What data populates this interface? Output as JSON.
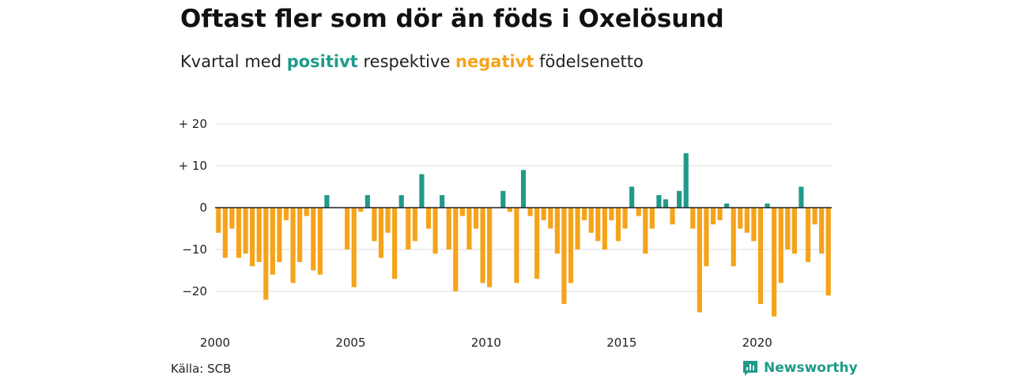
{
  "title": "Oftast fler som dör än föds i Oxelösund",
  "subtitle": {
    "prefix": "Kvartal med ",
    "positive": "positivt",
    "middle": " respektive ",
    "negative": "negativt",
    "suffix": " födelsenetto"
  },
  "source": "Källa: SCB",
  "brand": "Newsworthy",
  "colors": {
    "positive": "#1f9a8a",
    "negative": "#f5a31a",
    "grid": "#dddddd",
    "zero": "#222222"
  },
  "chart_data": {
    "type": "bar",
    "x_start": "2000 Q1",
    "x_ticks": [
      {
        "label": "2000",
        "index": 0
      },
      {
        "label": "2005",
        "index": 20
      },
      {
        "label": "2010",
        "index": 40
      },
      {
        "label": "2015",
        "index": 60
      },
      {
        "label": "2020",
        "index": 80
      }
    ],
    "y_ticks": [
      {
        "label": "+ 20",
        "value": 20
      },
      {
        "label": "+ 10",
        "value": 10
      },
      {
        "label": "0",
        "value": 0
      },
      {
        "label": "−10",
        "value": -10
      },
      {
        "label": "−20",
        "value": -20
      }
    ],
    "ylim": [
      -27,
      20
    ],
    "values": [
      -6,
      -12,
      -5,
      -12,
      -11,
      -14,
      -13,
      -22,
      -16,
      -13,
      -3,
      -18,
      -13,
      -2,
      -15,
      -16,
      3,
      0,
      0,
      -10,
      -19,
      -1,
      3,
      -8,
      -12,
      -6,
      -17,
      3,
      -10,
      -8,
      8,
      -5,
      -11,
      3,
      -10,
      -20,
      -2,
      -10,
      -5,
      -18,
      -19,
      0,
      4,
      -1,
      -18,
      9,
      -2,
      -17,
      -3,
      -5,
      -11,
      -23,
      -18,
      -10,
      -3,
      -6,
      -8,
      -10,
      -3,
      -8,
      -5,
      5,
      -2,
      -11,
      -5,
      3,
      2,
      -4,
      4,
      13,
      -5,
      -25,
      -14,
      -4,
      -3,
      1,
      -14,
      -5,
      -6,
      -8,
      -23,
      1,
      -26,
      -18,
      -10,
      -11,
      5,
      -13,
      -4,
      -11,
      -21
    ],
    "grid": true
  }
}
